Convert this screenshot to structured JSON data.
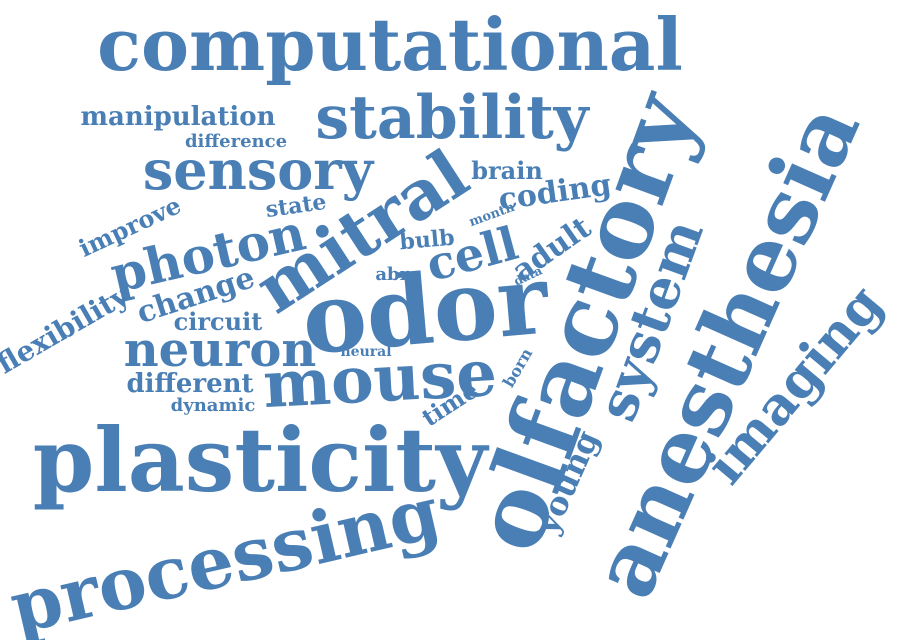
{
  "word_color": "#4a7fb5",
  "words": [
    {
      "key": "computational",
      "text": "computational"
    },
    {
      "key": "stability",
      "text": "stability"
    },
    {
      "key": "manipulation",
      "text": "manipulation"
    },
    {
      "key": "difference",
      "text": "difference"
    },
    {
      "key": "sensory",
      "text": "sensory"
    },
    {
      "key": "brain",
      "text": "brain"
    },
    {
      "key": "coding",
      "text": "coding"
    },
    {
      "key": "state",
      "text": "state"
    },
    {
      "key": "month",
      "text": "month"
    },
    {
      "key": "improve",
      "text": "improve"
    },
    {
      "key": "photon",
      "text": "photon"
    },
    {
      "key": "mitral",
      "text": "mitral"
    },
    {
      "key": "bulb",
      "text": "bulb"
    },
    {
      "key": "cell",
      "text": "cell"
    },
    {
      "key": "adult",
      "text": "adult"
    },
    {
      "key": "abn",
      "text": "abn"
    },
    {
      "key": "data",
      "text": "data"
    },
    {
      "key": "odor",
      "text": "odor"
    },
    {
      "key": "olfactory",
      "text": "olfactory"
    },
    {
      "key": "anesthesia",
      "text": "anesthesia"
    },
    {
      "key": "system",
      "text": "system"
    },
    {
      "key": "change",
      "text": "change"
    },
    {
      "key": "flexibility",
      "text": "flexibility"
    },
    {
      "key": "circuit",
      "text": "circuit"
    },
    {
      "key": "neuron",
      "text": "neuron"
    },
    {
      "key": "neural",
      "text": "neural"
    },
    {
      "key": "mouse",
      "text": "mouse"
    },
    {
      "key": "born",
      "text": "born"
    },
    {
      "key": "different",
      "text": "different"
    },
    {
      "key": "dynamic",
      "text": "dynamic"
    },
    {
      "key": "time",
      "text": "time"
    },
    {
      "key": "imaging",
      "text": "imaging"
    },
    {
      "key": "plasticity",
      "text": "plasticity"
    },
    {
      "key": "young",
      "text": "young"
    },
    {
      "key": "processing",
      "text": "processing"
    }
  ]
}
